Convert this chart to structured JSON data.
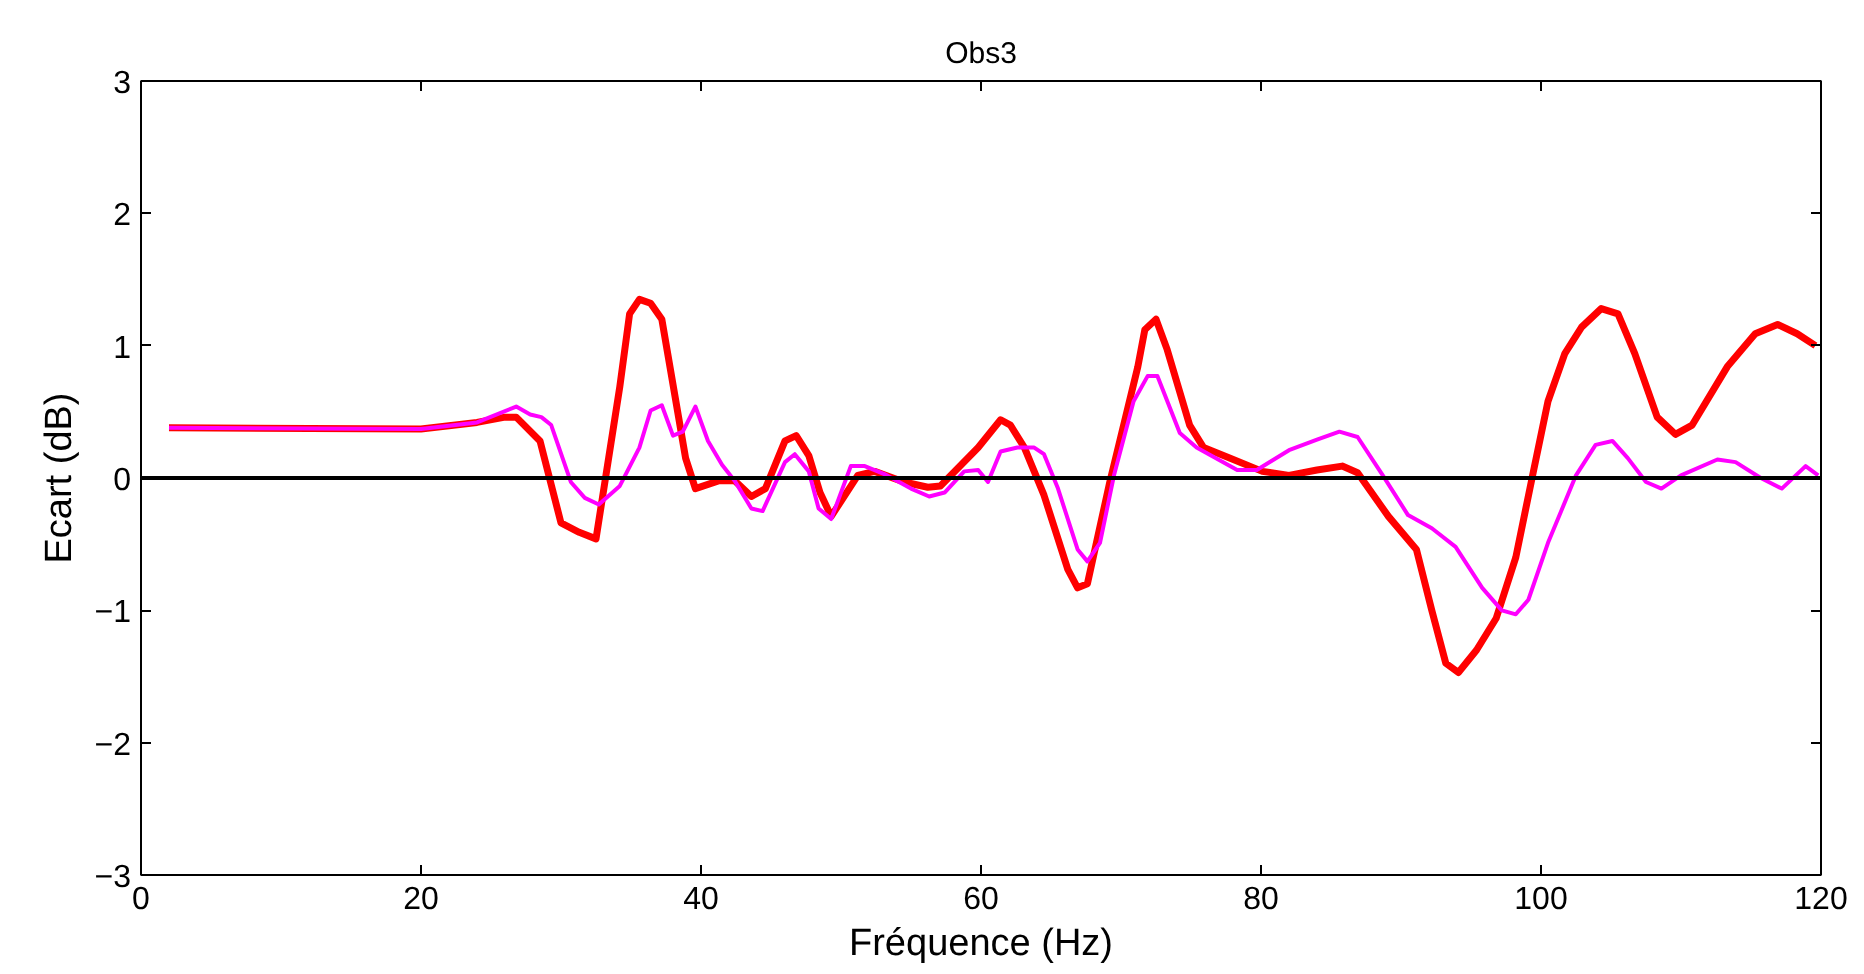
{
  "chart_data": {
    "type": "line",
    "title": "Obs3",
    "xlabel": "Fréquence (Hz)",
    "ylabel": "Ecart (dB)",
    "xlim": [
      0,
      120
    ],
    "ylim": [
      -3,
      3
    ],
    "xticks": [
      0,
      20,
      40,
      60,
      80,
      100,
      120
    ],
    "yticks": [
      -3,
      -2,
      -1,
      0,
      1,
      2,
      3
    ],
    "grid": false,
    "line_style": "solid",
    "marker": "none",
    "ref_lines": [
      {
        "axis": "y",
        "value": 0,
        "color": "#000000"
      }
    ],
    "series": [
      {
        "color": "#ff0000",
        "x": [
          2,
          20,
          24,
          26.0,
          26.8,
          28.5,
          30,
          31.3,
          32.5,
          34.2,
          34.9,
          35.6,
          36.4,
          37.2,
          38.9,
          39.6,
          41.3,
          42.4,
          43.6,
          44.6,
          46,
          46.8,
          47.7,
          48.5,
          49.3,
          51.2,
          52.4,
          54.5,
          56.2,
          57.1,
          59.8,
          61.4,
          62.1,
          63.1,
          64.5,
          66.2,
          66.9,
          67.6,
          69.2,
          71.2,
          71.7,
          72.5,
          73.3,
          74.9,
          75.9,
          77.8,
          80.1,
          82,
          84,
          85.8,
          86.9,
          89.1,
          91.1,
          92.2,
          93.2,
          94.1,
          95.4,
          96.8,
          98.2,
          99.4,
          100.5,
          101.7,
          102.9,
          104.3,
          105.5,
          106.7,
          108.3,
          109.6,
          110.8,
          113.3,
          115.3,
          116.9,
          118.3,
          119.6
        ],
        "values": [
          0.38,
          0.37,
          0.42,
          0.46,
          0.46,
          0.28,
          -0.34,
          -0.41,
          -0.46,
          0.69,
          1.24,
          1.35,
          1.32,
          1.2,
          0.15,
          -0.08,
          -0.02,
          -0.02,
          -0.14,
          -0.08,
          0.28,
          0.32,
          0.17,
          -0.11,
          -0.29,
          0.02,
          0.05,
          -0.03,
          -0.07,
          -0.06,
          0.23,
          0.44,
          0.4,
          0.23,
          -0.13,
          -0.69,
          -0.83,
          -0.8,
          -0.03,
          0.84,
          1.12,
          1.2,
          0.97,
          0.4,
          0.23,
          0.15,
          0.05,
          0.02,
          0.06,
          0.09,
          0.04,
          -0.29,
          -0.54,
          -1.0,
          -1.4,
          -1.47,
          -1.3,
          -1.06,
          -0.6,
          0.02,
          0.58,
          0.94,
          1.14,
          1.28,
          1.24,
          0.94,
          0.46,
          0.33,
          0.4,
          0.84,
          1.09,
          1.16,
          1.09,
          1.0
        ]
      },
      {
        "color": "#ff00ff",
        "x": [
          2,
          20,
          24,
          26.8,
          27.8,
          28.6,
          29.3,
          30.7,
          31.7,
          32.7,
          34.2,
          35.6,
          36.4,
          37.2,
          38,
          38.7,
          39.6,
          40.5,
          41.5,
          42.4,
          43.6,
          44.4,
          46,
          46.7,
          47.7,
          48.4,
          49.3,
          50.7,
          51.7,
          53.1,
          55,
          56.3,
          57.4,
          58.8,
          59.8,
          60.5,
          61.4,
          62.6,
          63.8,
          64.5,
          65.5,
          66.9,
          67.6,
          68.5,
          69.5,
          70.9,
          71.9,
          72.6,
          74.2,
          75.4,
          78.3,
          79.7,
          82,
          84,
          85.6,
          86.9,
          88.7,
          90.5,
          92.2,
          93.9,
          95.8,
          97.2,
          98.2,
          99.1,
          100.5,
          102.5,
          103.9,
          105.1,
          106.2,
          107.5,
          108.6,
          110,
          112.6,
          113.9,
          115.7,
          117.2,
          118.9,
          119.8
        ],
        "values": [
          0.38,
          0.37,
          0.42,
          0.54,
          0.48,
          0.46,
          0.4,
          -0.03,
          -0.15,
          -0.2,
          -0.06,
          0.23,
          0.51,
          0.55,
          0.32,
          0.35,
          0.54,
          0.28,
          0.1,
          -0.02,
          -0.23,
          -0.25,
          0.12,
          0.18,
          0.05,
          -0.23,
          -0.31,
          0.09,
          0.09,
          0.03,
          -0.08,
          -0.14,
          -0.11,
          0.05,
          0.06,
          -0.03,
          0.2,
          0.23,
          0.23,
          0.18,
          -0.08,
          -0.54,
          -0.63,
          -0.49,
          0.02,
          0.58,
          0.77,
          0.77,
          0.34,
          0.23,
          0.06,
          0.06,
          0.21,
          0.29,
          0.35,
          0.31,
          0.02,
          -0.28,
          -0.38,
          -0.52,
          -0.83,
          -1.0,
          -1.03,
          -0.92,
          -0.49,
          0.02,
          0.25,
          0.28,
          0.15,
          -0.03,
          -0.08,
          0.02,
          0.14,
          0.12,
          0,
          -0.08,
          0.09,
          0.02
        ]
      }
    ]
  }
}
